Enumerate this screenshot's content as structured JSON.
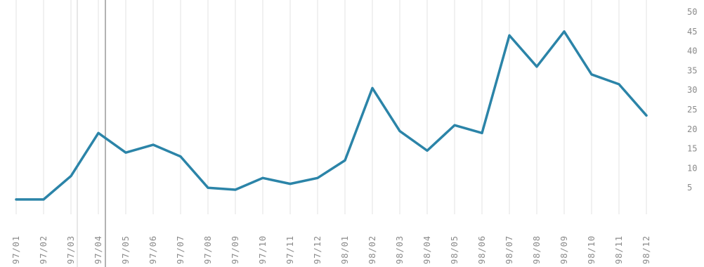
{
  "chart_data": {
    "type": "line",
    "title": "",
    "xlabel": "",
    "ylabel": "",
    "x": [
      "97/01",
      "97/02",
      "97/03",
      "97/04",
      "97/05",
      "97/06",
      "97/07",
      "97/08",
      "97/09",
      "97/10",
      "97/11",
      "97/12",
      "98/01",
      "98/02",
      "98/03",
      "98/04",
      "98/05",
      "98/06",
      "98/07",
      "98/08",
      "98/09",
      "98/10",
      "98/11",
      "98/12"
    ],
    "series": [
      {
        "values": [
          2,
          2,
          8,
          19,
          14,
          16,
          13,
          5,
          4.5,
          7.5,
          6,
          7.5,
          12,
          30.5,
          19.5,
          14.5,
          21,
          19,
          44,
          36,
          45,
          34,
          31.5,
          23.5
        ]
      }
    ],
    "ylim": [
      0,
      50
    ],
    "yticks": [
      "",
      "5",
      "10",
      "15",
      "20",
      "25",
      "30",
      "35",
      "40",
      "45",
      "50"
    ],
    "grid": "vertical",
    "highlight_category": "97/04",
    "colors": {
      "line": "#2b84a8",
      "grid": "#e3e3e3",
      "highlight": "#9a9a9a"
    }
  }
}
